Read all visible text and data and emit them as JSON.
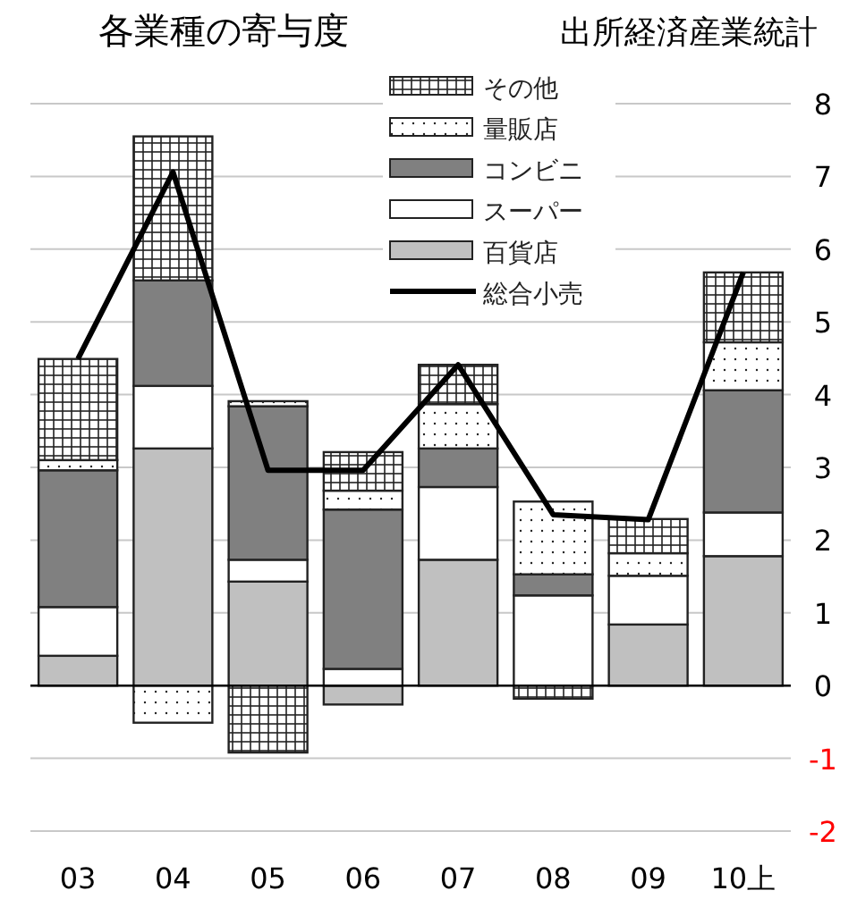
{
  "chart_data": {
    "type": "bar",
    "stacked": true,
    "title": "各業種の寄与度",
    "annotations": [
      "出所経済産業統計"
    ],
    "categories": [
      "03",
      "04",
      "05",
      "06",
      "07",
      "08",
      "09",
      "10上"
    ],
    "series": [
      {
        "name": "百貨店",
        "color": "#c0c0c0",
        "values": [
          0.41,
          3.26,
          1.43,
          -0.26,
          1.73,
          null,
          0.84,
          1.78
        ]
      },
      {
        "name": "スーパー",
        "color": "#ffffff",
        "values": [
          0.67,
          0.86,
          0.3,
          0.23,
          1.0,
          1.24,
          0.67,
          0.6
        ]
      },
      {
        "name": "コンビニ",
        "color": "#808080",
        "values": [
          1.88,
          1.45,
          2.11,
          2.19,
          0.53,
          0.29,
          0,
          1.68
        ]
      },
      {
        "name": "量販店",
        "color": "#222222",
        "values": [
          0.14,
          -0.51,
          0.07,
          0.26,
          0.61,
          1.0,
          0.31,
          0.66
        ]
      },
      {
        "name": "その他",
        "color": "#222222",
        "values": [
          1.39,
          1.98,
          -0.92,
          0.53,
          0.54,
          -0.18,
          0.47,
          0.96
        ]
      },
      {
        "name": "総合小売",
        "type": "line",
        "color": "#000000",
        "values": [
          4.49,
          7.06,
          2.96,
          2.96,
          4.41,
          2.35,
          2.28,
          5.68
        ]
      }
    ],
    "ylim": [
      -2,
      8
    ],
    "yticks": [
      -2,
      -1,
      0,
      1,
      2,
      3,
      4,
      5,
      6,
      7,
      8
    ],
    "grid": "y",
    "legend": "top",
    "line_style": "solid",
    "marker": "none"
  }
}
